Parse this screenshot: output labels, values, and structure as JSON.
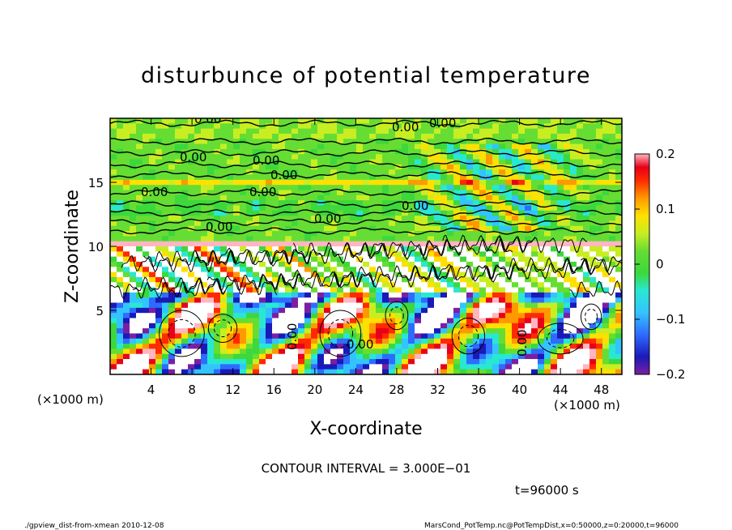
{
  "chart_data": {
    "type": "heatmap",
    "title": "disturbunce of potential temperature",
    "xlabel": "X-coordinate",
    "ylabel": "Z-coordinate",
    "x_unit": "(×1000 m)",
    "y_unit": "(×1000 m)",
    "xlim": [
      0,
      50
    ],
    "ylim": [
      0,
      20
    ],
    "x_ticks": [
      "4",
      "8",
      "12",
      "16",
      "20",
      "24",
      "28",
      "32",
      "36",
      "40",
      "44",
      "48"
    ],
    "y_ticks": [
      "5",
      "10",
      "15"
    ],
    "colorbar": {
      "range": [
        -0.2,
        0.2
      ],
      "tick_labels": [
        "0.2",
        "0.1",
        "0",
        "−0.1",
        "−0.2"
      ],
      "tick_values": [
        0.2,
        0.1,
        0,
        -0.1,
        -0.2
      ]
    },
    "contour_labels": [
      "0.00",
      "0.00",
      "0.00",
      "0.00",
      "0.00",
      "0.00",
      "0.00",
      "0.00",
      "0.00",
      "0.00",
      "0.00",
      "0.00",
      "0.00",
      "0.00"
    ],
    "contour_interval_text": "CONTOUR INTERVAL = 3.000E−01",
    "time_text": "t=96000 s",
    "footer_left": "./gpview_dist-from-xmean  2010-12-08",
    "footer_right": "MarsCond_PotTemp.nc@PotTempDist,x=0:50000,z=0:20000,t=96000"
  },
  "colors": {
    "scale": [
      "#7b1fa2",
      "#1a1ab8",
      "#2e6bff",
      "#33c4ff",
      "#29e8d2",
      "#3cd83c",
      "#66dd33",
      "#c8ee22",
      "#ffe000",
      "#ff9900",
      "#ff2a00",
      "#e8001a",
      "#ffb6c1"
    ]
  }
}
